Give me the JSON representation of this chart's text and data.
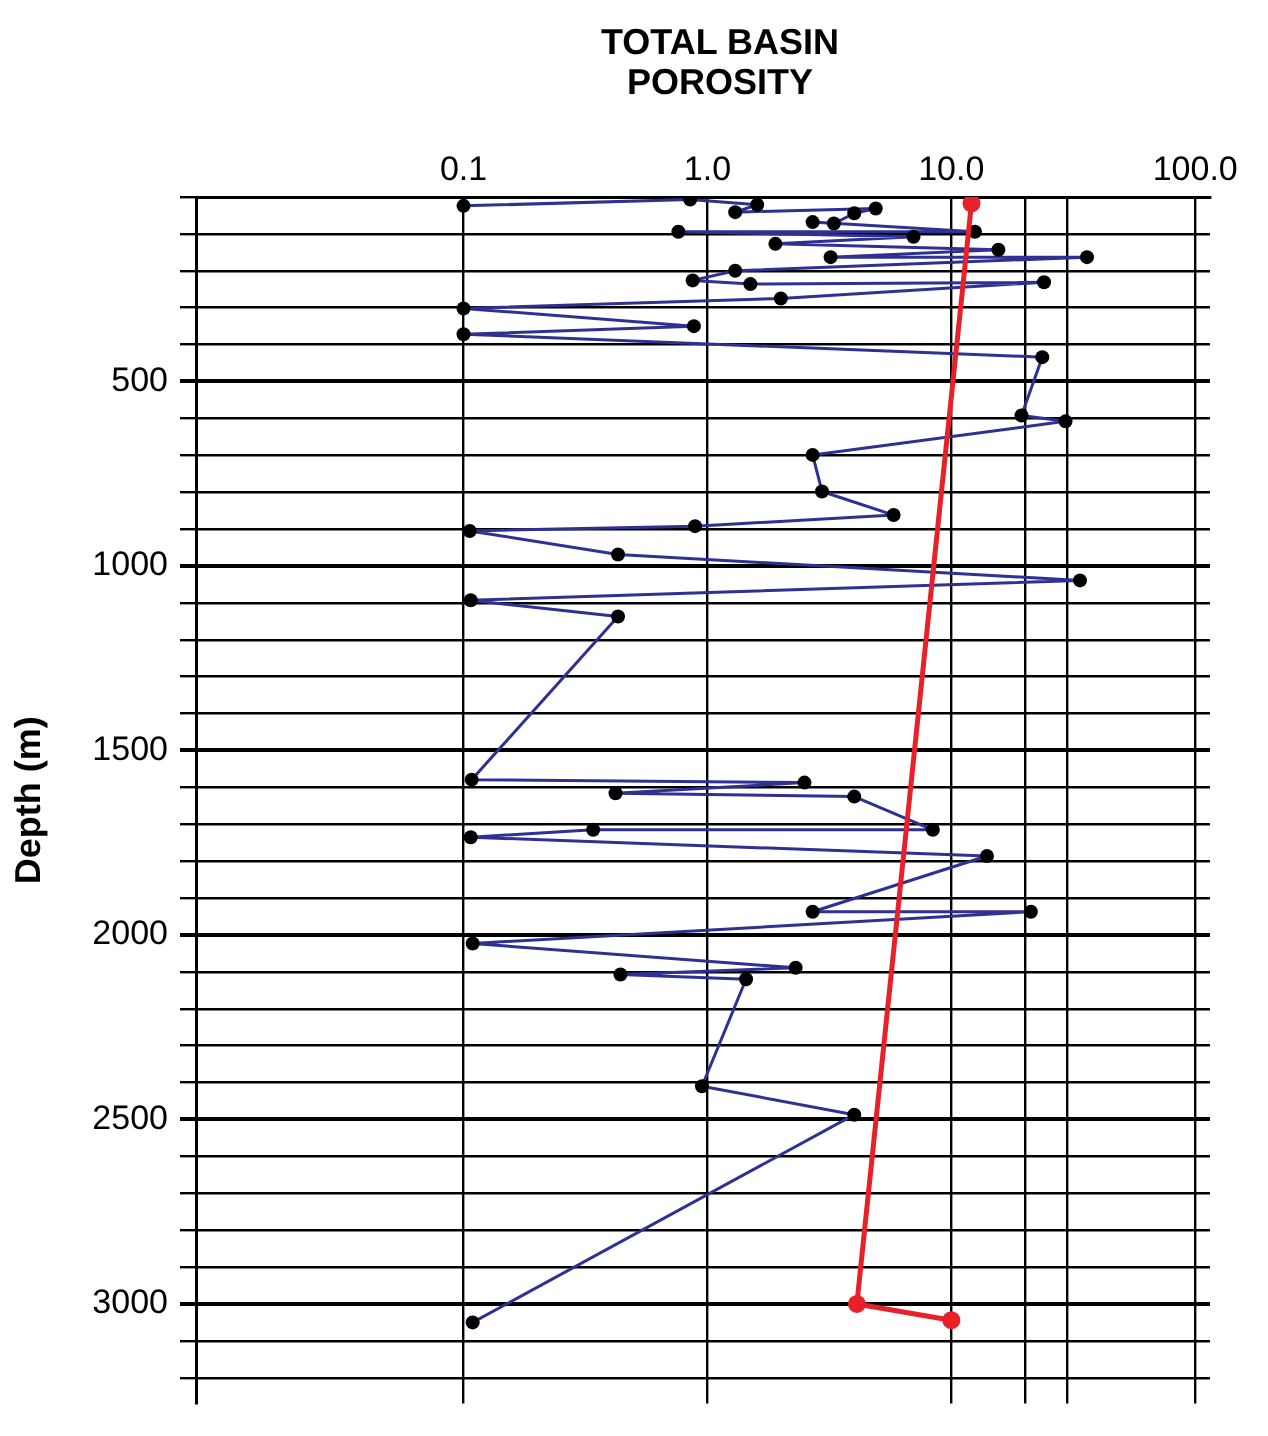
{
  "chart_data": {
    "type": "line",
    "xlabel": "TOTAL BASIN POROSITY",
    "ylabel": "Depth (m)",
    "log": "x",
    "grid": true,
    "legend": false,
    "marker": "circle",
    "line_style": "solid",
    "xlim": [
      0.008,
      115
    ],
    "xticks": [
      0.1,
      {
        "value": 1,
        "label": "1.0"
      },
      {
        "value": 10,
        "label": "10.0"
      },
      {
        "value": 20,
        "label": null
      },
      {
        "value": 30,
        "label": null
      },
      {
        "value": 100,
        "label": "100.0"
      }
    ],
    "ylim": [
      3270,
      0
    ],
    "yticks": [
      {
        "value": 0,
        "label": null
      },
      {
        "value": 100,
        "label": null
      },
      {
        "value": 200,
        "label": null
      },
      {
        "value": 300,
        "label": null
      },
      {
        "value": 400,
        "label": null
      },
      500,
      {
        "value": 600,
        "label": null
      },
      {
        "value": 700,
        "label": null
      },
      {
        "value": 800,
        "label": null
      },
      {
        "value": 900,
        "label": null
      },
      1000,
      {
        "value": 1100,
        "label": null
      },
      {
        "value": 1200,
        "label": null
      },
      {
        "value": 1300,
        "label": null
      },
      {
        "value": 1400,
        "label": null
      },
      1500,
      {
        "value": 1600,
        "label": null
      },
      {
        "value": 1700,
        "label": null
      },
      {
        "value": 1800,
        "label": null
      },
      {
        "value": 1900,
        "label": null
      },
      2000,
      {
        "value": 2100,
        "label": null
      },
      {
        "value": 2200,
        "label": null
      },
      {
        "value": 2300,
        "label": null
      },
      {
        "value": 2400,
        "label": null
      },
      2500,
      {
        "value": 2600,
        "label": null
      },
      {
        "value": 2700,
        "label": null
      },
      {
        "value": 2800,
        "label": null
      },
      {
        "value": 2900,
        "label": null
      },
      3000,
      {
        "value": 3100,
        "label": null
      },
      {
        "value": 3200,
        "label": null
      }
    ],
    "series": [
      {
        "color": "#2e3192",
        "x": [
          0.1,
          0.85,
          1.6,
          1.3,
          4.9,
          4.0,
          3.3,
          2.7,
          12.5,
          0.76,
          7.0,
          1.9,
          15.6,
          3.2,
          36,
          1.3,
          0.87,
          1.5,
          24,
          2.0,
          0.1,
          0.88,
          0.1,
          23.6,
          19.4,
          29.4,
          2.7,
          2.95,
          5.8,
          0.89,
          0.106,
          0.43,
          33.7,
          0.107,
          0.43,
          0.108,
          2.5,
          0.42,
          4.0,
          8.4,
          0.34,
          0.107,
          14,
          2.7,
          21.2,
          0.109,
          2.3,
          0.44,
          1.44,
          0.95,
          4.0,
          0.109
        ],
        "values": [
          24,
          7,
          21,
          41,
          31,
          44,
          72,
          68,
          94,
          94,
          108,
          127,
          143,
          163,
          163,
          200,
          226,
          236,
          231,
          275,
          302,
          350,
          372,
          434,
          592,
          608,
          699,
          798,
          862,
          892,
          905,
          969,
          1039,
          1093,
          1137,
          1579,
          1587,
          1616,
          1625,
          1715,
          1715,
          1735,
          1786,
          1937,
          1937,
          2023,
          2089,
          2107,
          2120,
          2410,
          2487,
          3050
        ]
      },
      {
        "color": "#e8202a",
        "x": [
          12.1,
          4.1,
          10
        ],
        "values": [
          17,
          3000,
          3044
        ]
      }
    ]
  }
}
